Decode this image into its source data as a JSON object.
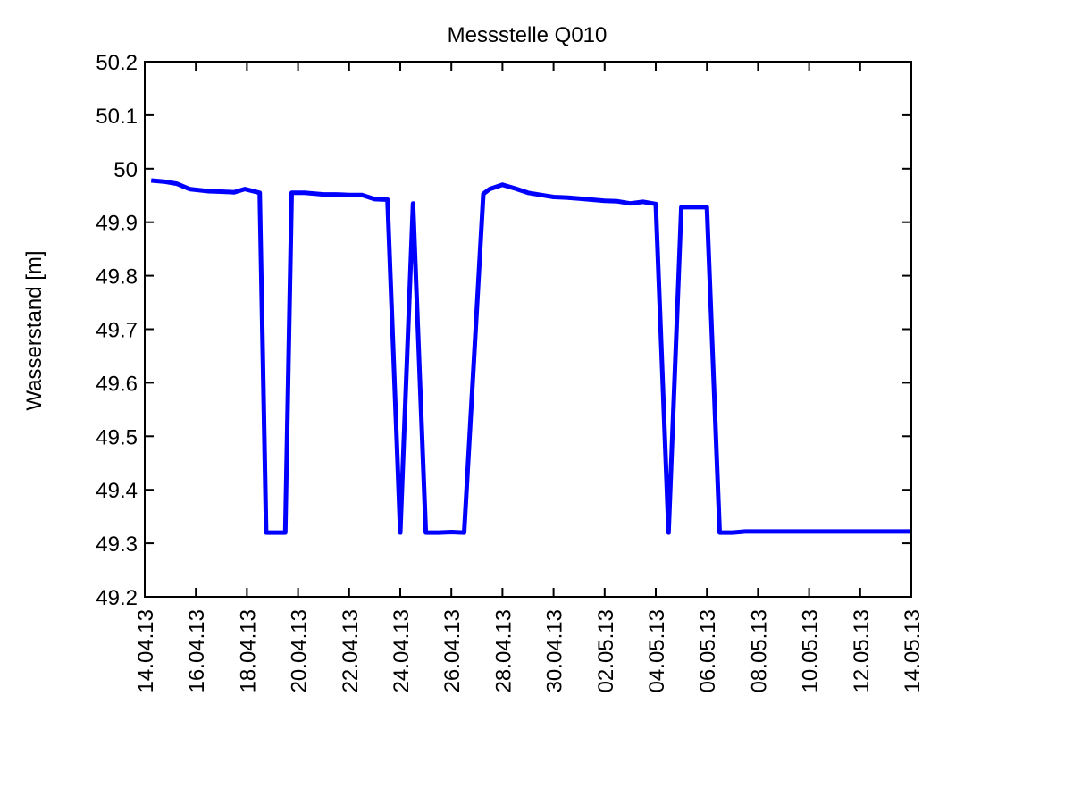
{
  "chart_data": {
    "type": "line",
    "title": "Messstelle Q010",
    "xlabel": "",
    "ylabel": "Wasserstand [m]",
    "xlim": [
      "2013-04-14",
      "2013-05-14"
    ],
    "ylim": [
      49.2,
      50.2
    ],
    "x_ticks": [
      "14.04.13",
      "16.04.13",
      "18.04.13",
      "20.04.13",
      "22.04.13",
      "24.04.13",
      "26.04.13",
      "28.04.13",
      "30.04.13",
      "02.05.13",
      "04.05.13",
      "06.05.13",
      "08.05.13",
      "10.05.13",
      "12.05.13",
      "14.05.13"
    ],
    "y_ticks": [
      "49.2",
      "49.3",
      "49.4",
      "49.5",
      "49.6",
      "49.7",
      "49.8",
      "49.9",
      "50",
      "50.1",
      "50.2"
    ],
    "grid": false,
    "line_color": "#0000ff",
    "series": [
      {
        "x": [
          "2013-04-14 06:00",
          "2013-04-14 18:00",
          "2013-04-15 06:00",
          "2013-04-15 18:00",
          "2013-04-16 12:00",
          "2013-04-17 02:00",
          "2013-04-17 12:00",
          "2013-04-17 22:00",
          "2013-04-18 12:00",
          "2013-04-18 18:00",
          "2013-04-19 12:00",
          "2013-04-19 18:00",
          "2013-04-20 06:00",
          "2013-04-21 00:00",
          "2013-04-21 12:00",
          "2013-04-22 00:00",
          "2013-04-22 12:00",
          "2013-04-23 00:00",
          "2013-04-23 12:00",
          "2013-04-24 00:00",
          "2013-04-24 12:00",
          "2013-04-25 00:00",
          "2013-04-25 12:00",
          "2013-04-26 00:00",
          "2013-04-26 12:00",
          "2013-04-27 06:00",
          "2013-04-27 12:00",
          "2013-04-28 00:00",
          "2013-04-28 12:00",
          "2013-04-29 00:00",
          "2013-04-29 12:00",
          "2013-04-30 00:00",
          "2013-04-30 12:00",
          "2013-05-01 00:00",
          "2013-05-01 12:00",
          "2013-05-02 00:00",
          "2013-05-02 12:00",
          "2013-05-03 00:00",
          "2013-05-03 12:00",
          "2013-05-04 00:00",
          "2013-05-04 12:00",
          "2013-05-05 00:00",
          "2013-05-05 12:00",
          "2013-05-06 00:00",
          "2013-05-06 12:00",
          "2013-05-07 00:00",
          "2013-05-07 12:00",
          "2013-05-07 18:00",
          "2013-05-08 06:00",
          "2013-05-09 00:00",
          "2013-05-10 00:00",
          "2013-05-11 00:00",
          "2013-05-12 00:00",
          "2013-05-13 00:00",
          "2013-05-14 00:00"
        ],
        "y": [
          49.978,
          49.976,
          49.972,
          49.962,
          49.958,
          49.957,
          49.956,
          49.962,
          49.955,
          49.32,
          49.32,
          49.955,
          49.955,
          49.952,
          49.952,
          49.951,
          49.951,
          49.943,
          49.942,
          49.32,
          49.935,
          49.32,
          49.32,
          49.321,
          49.32,
          49.953,
          49.962,
          49.97,
          49.963,
          49.955,
          49.951,
          49.947,
          49.946,
          49.944,
          49.942,
          49.94,
          49.939,
          49.935,
          49.938,
          49.934,
          49.32,
          49.928,
          49.928,
          49.928,
          49.32,
          49.32,
          49.322,
          49.322,
          49.322,
          49.322,
          49.322,
          49.322,
          49.322,
          49.322,
          49.322
        ]
      }
    ]
  }
}
